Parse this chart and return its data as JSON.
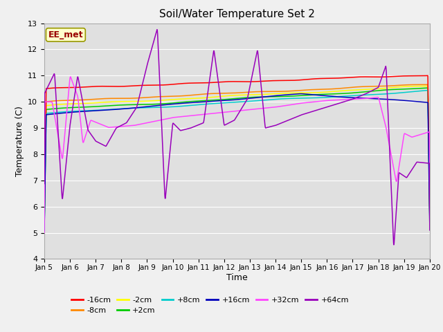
{
  "title": "Soil/Water Temperature Set 2",
  "xlabel": "Time",
  "ylabel": "Temperature (C)",
  "ylim": [
    4.0,
    13.0
  ],
  "yticks": [
    4.0,
    5.0,
    6.0,
    7.0,
    8.0,
    9.0,
    10.0,
    11.0,
    12.0,
    13.0
  ],
  "x_labels": [
    "Jan 5",
    "Jan 6",
    "Jan 7",
    "Jan 8",
    "Jan 9",
    "Jan 10",
    "Jan 11",
    "Jan 12",
    "Jan 13",
    "Jan 14",
    "Jan 15",
    "Jan 16",
    "Jan 17",
    "Jan 18",
    "Jan 19",
    "Jan 20"
  ],
  "colors": {
    "-16cm": "#ff0000",
    "-8cm": "#ff8800",
    "-2cm": "#ffff00",
    "+2cm": "#00cc00",
    "+8cm": "#00cccc",
    "+16cm": "#0000bb",
    "+32cm": "#ff44ff",
    "+64cm": "#9900bb"
  },
  "annotation_text": "EE_met",
  "fig_bg": "#f0f0f0",
  "plot_bg": "#e0e0e0",
  "grid_color": "#ffffff",
  "legend_ncol_row1": 6,
  "legend_ncol_row2": 2
}
